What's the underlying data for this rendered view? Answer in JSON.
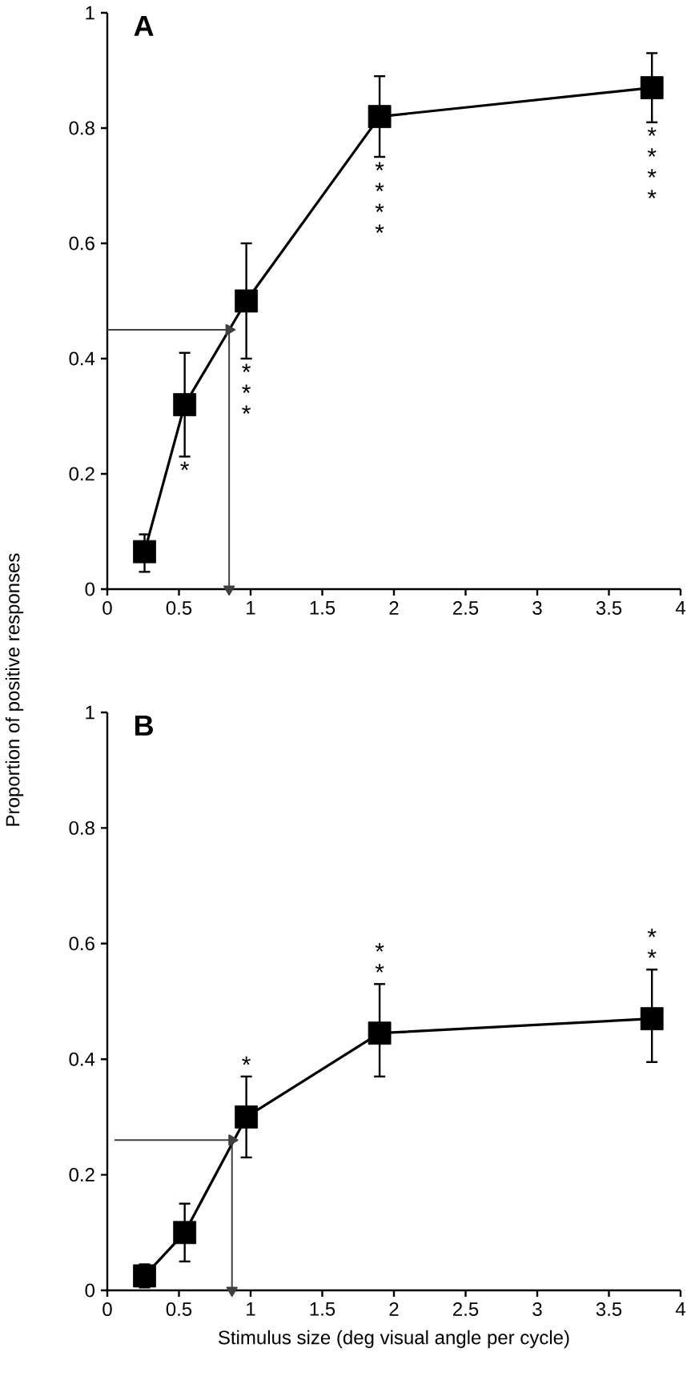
{
  "chart_data": [
    {
      "type": "line",
      "title": "A",
      "ylabel": "Proportion of positive responses",
      "xlim": [
        0,
        4
      ],
      "ylim": [
        0,
        1
      ],
      "xticks": [
        0,
        0.5,
        1,
        1.5,
        2,
        2.5,
        3,
        3.5,
        4
      ],
      "yticks": [
        0,
        0.2,
        0.4,
        0.6,
        0.8,
        1
      ],
      "marker": "square",
      "line_style": "solid",
      "series": [
        {
          "color": "#000000",
          "x": [
            0.26,
            0.54,
            0.97,
            1.9,
            3.8
          ],
          "values": [
            0.065,
            0.32,
            0.5,
            0.82,
            0.87
          ],
          "errors": [
            [
              0.03,
              0.095
            ],
            [
              0.23,
              0.41
            ],
            [
              0.4,
              0.6
            ],
            [
              0.75,
              0.89
            ],
            [
              0.81,
              0.93
            ]
          ]
        },
        {
          "color": "#404040",
          "marker": "triangle",
          "x": [
            0,
            0.85
          ],
          "values": [
            0.45,
            0.45
          ]
        },
        {
          "color": "#404040",
          "marker": "triangle",
          "x": [
            0.85,
            0.85
          ],
          "values": [
            0.45,
            0
          ]
        }
      ],
      "annotations": [
        {
          "text": "*",
          "x": 0.54,
          "y": 0.23
        },
        {
          "text": "* * *",
          "x": 0.97,
          "y": 0.4
        },
        {
          "text": "* * * *",
          "x": 1.9,
          "y": 0.75
        },
        {
          "text": "* * * *",
          "x": 3.8,
          "y": 0.81
        }
      ]
    },
    {
      "type": "line",
      "title": "B",
      "xlabel": "Stimulus size (deg visual angle per cycle)",
      "xlim": [
        0,
        4
      ],
      "ylim": [
        0,
        1
      ],
      "xticks": [
        0,
        0.5,
        1,
        1.5,
        2,
        2.5,
        3,
        3.5,
        4
      ],
      "yticks": [
        0,
        0.2,
        0.4,
        0.6,
        0.8,
        1
      ],
      "marker": "square",
      "line_style": "solid",
      "series": [
        {
          "color": "#000000",
          "x": [
            0.26,
            0.54,
            0.97,
            1.9,
            3.8
          ],
          "values": [
            0.025,
            0.1,
            0.3,
            0.445,
            0.47
          ],
          "errors": [
            [
              0.005,
              0.045
            ],
            [
              0.05,
              0.15
            ],
            [
              0.23,
              0.37
            ],
            [
              0.37,
              0.53
            ],
            [
              0.395,
              0.555
            ]
          ]
        },
        {
          "color": "#404040",
          "marker": "triangle",
          "x": [
            0.05,
            0.87
          ],
          "values": [
            0.26,
            0.26
          ]
        },
        {
          "color": "#404040",
          "marker": "triangle",
          "x": [
            0.87,
            0.87
          ],
          "values": [
            0.26,
            0
          ]
        }
      ],
      "annotations": [
        {
          "text": "*",
          "x": 0.97,
          "y": 0.37
        },
        {
          "text": "* *",
          "x": 1.9,
          "y": 0.53
        },
        {
          "text": "* *",
          "x": 3.8,
          "y": 0.555
        }
      ]
    }
  ]
}
